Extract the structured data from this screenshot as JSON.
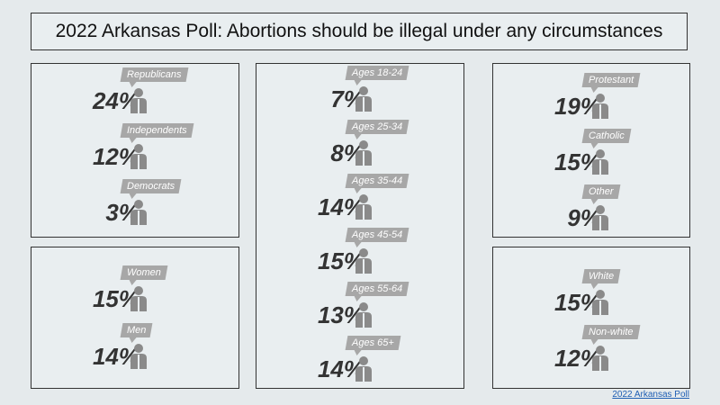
{
  "title": "2022 Arkansas Poll: Abortions should be illegal under any circumstances",
  "source_link": "2022 Arkansas Poll",
  "colors": {
    "tag": "#a7a7a7",
    "person": "#8a8a8a",
    "text": "#333333"
  },
  "chart_data": [
    {
      "type": "table",
      "group": "party",
      "categories": [
        "Republicans",
        "Independents",
        "Democrats"
      ],
      "values": [
        24,
        12,
        3
      ],
      "labels": [
        "24%",
        "12%",
        "3%"
      ]
    },
    {
      "type": "table",
      "group": "gender",
      "categories": [
        "Women",
        "Men"
      ],
      "values": [
        15,
        14
      ],
      "labels": [
        "15%",
        "14%"
      ]
    },
    {
      "type": "table",
      "group": "age",
      "categories": [
        "Ages 18-24",
        "Ages 25-34",
        "Ages 35-44",
        "Ages 45-54",
        "Ages 55-64",
        "Ages 65+"
      ],
      "values": [
        7,
        8,
        14,
        15,
        13,
        14
      ],
      "labels": [
        "7%",
        "8%",
        "14%",
        "15%",
        "13%",
        "14%"
      ]
    },
    {
      "type": "table",
      "group": "religion",
      "categories": [
        "Protestant",
        "Catholic",
        "Other"
      ],
      "values": [
        19,
        15,
        9
      ],
      "labels": [
        "19%",
        "15%",
        "9%"
      ]
    },
    {
      "type": "table",
      "group": "race",
      "categories": [
        "White",
        "Non-white"
      ],
      "values": [
        15,
        12
      ],
      "labels": [
        "15%",
        "12%"
      ]
    }
  ]
}
